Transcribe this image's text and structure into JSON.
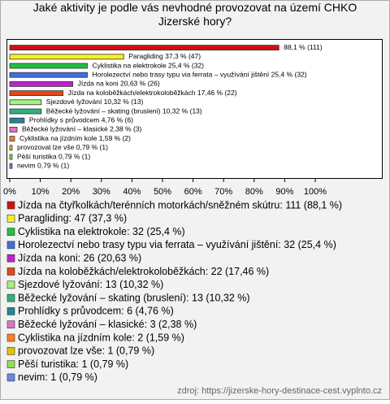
{
  "chart_data": {
    "type": "hbar",
    "title": "Jaké aktivity je podle vás nevhodné provozovat na území CHKO Jizerské hory?",
    "categories": [
      "Jízda na čtyřkolkách/terénních motorkách/sněžném skútru: 111 (88,1 %)",
      "Paragliding: 47 (37,3 %)",
      "Cyklistika na elektrokole: 32 (25,4 %)",
      "Horolezectví nebo trasy typu via ferrata – využívání jištění: 32 (25,4 %)",
      "Jízda na koni: 26 (20,63 %)",
      "Jízda na koloběžkách/elektrokoloběžkách: 22 (17,46 %)",
      "Sjezdové lyžování: 13 (10,32 %)",
      "Běžecké lyžování – skating (bruslení): 13 (10,32 %)",
      "Prohlídky s průvodcem: 6 (4,76 %)",
      "Běžecké lyžování – klasické: 3 (2,38 %)",
      "Cyklistika na jízdním kole: 2 (1,59 %)",
      "provozovat lze vše: 1 (0,79 %)",
      "Pěší turistika: 1 (0,79 %)",
      "nevim: 1 (0,79 %)"
    ],
    "values": [
      88.1,
      37.3,
      25.4,
      25.4,
      20.63,
      17.46,
      10.32,
      10.32,
      4.76,
      2.38,
      1.59,
      0.79,
      0.79,
      0.79
    ],
    "value_labels": [
      "88,1 % (111)",
      "Paragliding 37,3 % (47)",
      "Cyklistika na elektrokole 25,4 % (32)",
      "Horolezectví nebo trasy typu via ferrata – využívání jištění 25,4 % (32)",
      "Jízda na koni 20,63 % (26)",
      "Jízda na koloběžkách/elektrokoloběžkách 17,46 % (22)",
      "Sjezdové lyžování 10,32 % (13)",
      "Běžecké lyžování – skating (bruslení) 10,32 % (13)",
      "Prohlídky s průvodcem 4,76 % (6)",
      "Běžecké lyžování – klasické 2,38 % (3)",
      "Cyklistika na jízdním kole 1,59 % (2)",
      "provozovat lze vše 0,79 % (1)",
      "Pěší turistika 0,79 % (1)",
      "nevim 0,79 % (1)"
    ],
    "colors": [
      "#d01010",
      "#f8f020",
      "#20c040",
      "#4070e0",
      "#c020d0",
      "#e04818",
      "#a8f080",
      "#30b080",
      "#208898",
      "#e070c8",
      "#ff8020",
      "#e8c000",
      "#90e050",
      "#6888e0"
    ],
    "xlim": [
      0,
      100
    ],
    "xticks": [
      {
        "value": 0,
        "label": "0%"
      },
      {
        "value": 10,
        "label": "10%"
      },
      {
        "value": 20,
        "label": "20%"
      },
      {
        "value": 30,
        "label": "30%"
      },
      {
        "value": 40,
        "label": "40%"
      },
      {
        "value": 50,
        "label": "50%"
      },
      {
        "value": 60,
        "label": "60%"
      },
      {
        "value": 70,
        "label": "70%"
      },
      {
        "value": 80,
        "label": "80%"
      },
      {
        "value": 90,
        "label": "90%"
      },
      {
        "value": 100,
        "label": "100%"
      }
    ],
    "source": "zdroj: https://jizerske-hory-destinace-cest.vyplnto.cz"
  }
}
